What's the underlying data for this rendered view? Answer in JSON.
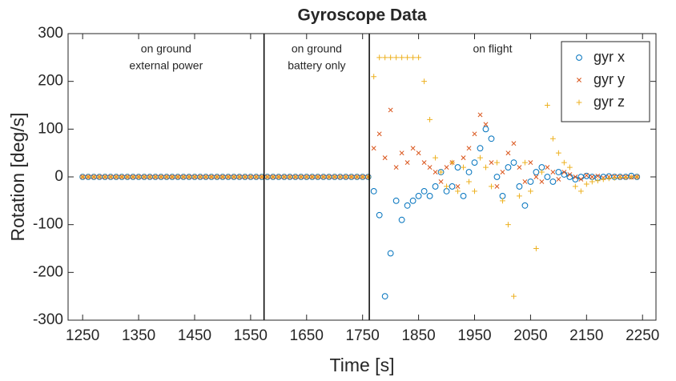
{
  "chart_data": {
    "type": "scatter",
    "title": "Gyroscope Data",
    "xlabel": "Time [s]",
    "ylabel": "Rotation [deg/s]",
    "xlim": [
      1224,
      2274
    ],
    "xticks": [
      1250,
      1350,
      1450,
      1550,
      1650,
      1750,
      1850,
      1950,
      2050,
      2150,
      2250
    ],
    "ylim": [
      -300,
      300
    ],
    "yticks": [
      -300,
      -200,
      -100,
      0,
      100,
      200,
      300
    ],
    "grid": false,
    "legend": "upper right",
    "vlines": [
      1574,
      1762
    ],
    "annotations": [
      [
        "on ground",
        "external power"
      ],
      [
        "on ground",
        "battery only"
      ],
      [
        "on flight"
      ]
    ],
    "x": [
      1250,
      1260,
      1270,
      1280,
      1290,
      1300,
      1310,
      1320,
      1330,
      1340,
      1350,
      1360,
      1370,
      1380,
      1390,
      1400,
      1410,
      1420,
      1430,
      1440,
      1450,
      1460,
      1470,
      1480,
      1490,
      1500,
      1510,
      1520,
      1530,
      1540,
      1550,
      1560,
      1570,
      1580,
      1590,
      1600,
      1610,
      1620,
      1630,
      1640,
      1650,
      1660,
      1670,
      1680,
      1690,
      1700,
      1710,
      1720,
      1730,
      1740,
      1750,
      1760,
      1770,
      1780,
      1790,
      1800,
      1810,
      1820,
      1830,
      1840,
      1850,
      1860,
      1870,
      1880,
      1890,
      1900,
      1910,
      1920,
      1930,
      1940,
      1950,
      1960,
      1970,
      1980,
      1990,
      2000,
      2010,
      2020,
      2030,
      2040,
      2050,
      2060,
      2070,
      2080,
      2090,
      2100,
      2110,
      2120,
      2130,
      2140,
      2150,
      2160,
      2170,
      2180,
      2190,
      2200,
      2210,
      2220,
      2230,
      2240
    ],
    "series": [
      {
        "name": "gyr x",
        "color": "#0072bd",
        "marker": "circle",
        "values": [
          0,
          0,
          0,
          0,
          0,
          0,
          0,
          0,
          0,
          0,
          0,
          0,
          0,
          0,
          0,
          0,
          0,
          0,
          0,
          0,
          0,
          0,
          0,
          0,
          0,
          0,
          0,
          0,
          0,
          0,
          0,
          0,
          0,
          0,
          0,
          0,
          0,
          0,
          0,
          0,
          0,
          0,
          0,
          0,
          0,
          0,
          0,
          0,
          0,
          0,
          0,
          0,
          -30,
          -80,
          -250,
          -160,
          -50,
          -90,
          -60,
          -50,
          -40,
          -30,
          -40,
          -20,
          10,
          -30,
          -20,
          20,
          -40,
          10,
          30,
          60,
          100,
          80,
          0,
          -40,
          20,
          30,
          -20,
          -60,
          -10,
          10,
          20,
          0,
          -10,
          10,
          5,
          0,
          -5,
          0,
          2,
          0,
          -2,
          0,
          1,
          0,
          0,
          0,
          2,
          0
        ]
      },
      {
        "name": "gyr y",
        "color": "#d95319",
        "marker": "x",
        "values": [
          0,
          0,
          0,
          0,
          0,
          0,
          0,
          0,
          0,
          0,
          0,
          0,
          0,
          0,
          0,
          0,
          0,
          0,
          0,
          0,
          0,
          0,
          0,
          0,
          0,
          0,
          0,
          0,
          0,
          0,
          0,
          0,
          0,
          0,
          0,
          0,
          0,
          0,
          0,
          0,
          0,
          0,
          0,
          0,
          0,
          0,
          0,
          0,
          0,
          0,
          0,
          0,
          60,
          90,
          40,
          140,
          20,
          50,
          30,
          60,
          50,
          30,
          20,
          10,
          -10,
          20,
          30,
          -20,
          40,
          60,
          90,
          130,
          110,
          30,
          -20,
          10,
          50,
          70,
          20,
          -10,
          30,
          0,
          -10,
          20,
          10,
          -5,
          10,
          5,
          0,
          -5,
          3,
          0,
          2,
          -2,
          0,
          1,
          0,
          0,
          -1,
          0
        ]
      },
      {
        "name": "gyr z",
        "color": "#edb120",
        "marker": "plus",
        "values": [
          0,
          0,
          0,
          0,
          0,
          0,
          0,
          0,
          0,
          0,
          0,
          0,
          0,
          0,
          0,
          0,
          0,
          0,
          0,
          0,
          0,
          0,
          0,
          0,
          0,
          0,
          0,
          0,
          0,
          0,
          0,
          0,
          0,
          0,
          0,
          0,
          0,
          0,
          0,
          0,
          0,
          0,
          0,
          0,
          0,
          0,
          0,
          0,
          0,
          0,
          0,
          0,
          210,
          250,
          250,
          250,
          250,
          250,
          250,
          250,
          250,
          200,
          120,
          40,
          10,
          -20,
          30,
          -30,
          20,
          -10,
          -30,
          40,
          20,
          -20,
          30,
          -50,
          -100,
          -250,
          -40,
          30,
          -30,
          -150,
          10,
          150,
          80,
          50,
          30,
          20,
          -20,
          -30,
          -15,
          -10,
          -8,
          -5,
          -3,
          -2,
          -1,
          -1,
          0,
          0
        ]
      }
    ]
  }
}
